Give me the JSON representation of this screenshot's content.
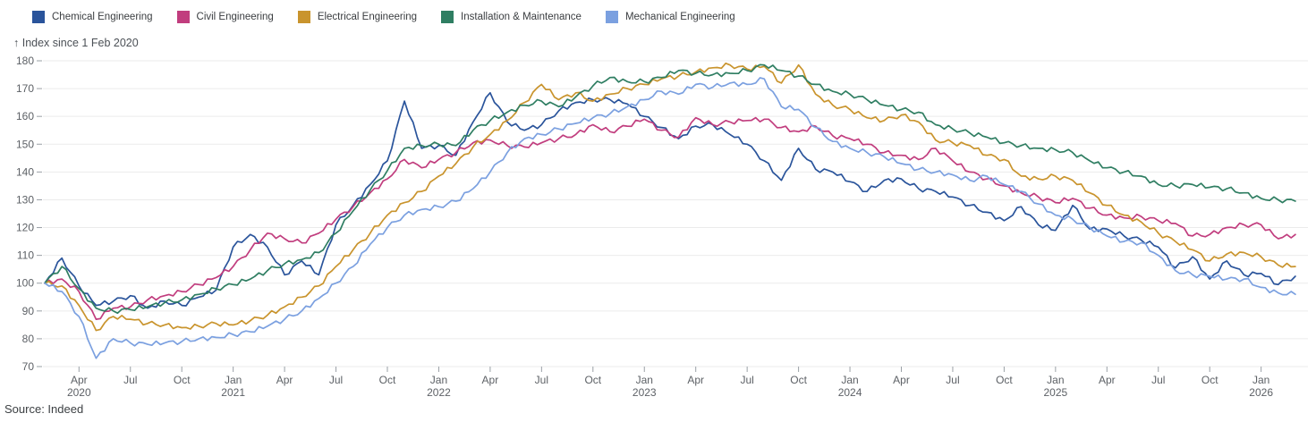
{
  "legend": {
    "items": [
      {
        "label": "Chemical Engineering",
        "color": "#2a549b"
      },
      {
        "label": "Civil Engineering",
        "color": "#c13d7e"
      },
      {
        "label": "Electrical Engineering",
        "color": "#c9942d"
      },
      {
        "label": "Installation & Maintenance",
        "color": "#2f7e62"
      },
      {
        "label": "Mechanical Engineering",
        "color": "#7ba0e0"
      }
    ]
  },
  "axis_title": "↑ Index since 1 Feb 2020",
  "source": "Source: Indeed",
  "chart_data": {
    "type": "line",
    "title": "",
    "ylabel": "Index since 1 Feb 2020",
    "xlabel": "",
    "x_unit": "months since Feb 2020",
    "x_start": "2020-02",
    "x_end": "2026-03",
    "ylim": [
      70,
      180
    ],
    "yticks": [
      70,
      80,
      90,
      100,
      110,
      120,
      130,
      140,
      150,
      160,
      170,
      180
    ],
    "grid": "horizontal",
    "legend_position": "top-left",
    "x_ticks": [
      {
        "m": 2,
        "label": "Apr",
        "year": "2020"
      },
      {
        "m": 5,
        "label": "Jul"
      },
      {
        "m": 8,
        "label": "Oct"
      },
      {
        "m": 11,
        "label": "Jan",
        "year": "2021"
      },
      {
        "m": 14,
        "label": "Apr"
      },
      {
        "m": 17,
        "label": "Jul"
      },
      {
        "m": 20,
        "label": "Oct"
      },
      {
        "m": 23,
        "label": "Jan",
        "year": "2022"
      },
      {
        "m": 26,
        "label": "Apr"
      },
      {
        "m": 29,
        "label": "Jul"
      },
      {
        "m": 32,
        "label": "Oct"
      },
      {
        "m": 35,
        "label": "Jan",
        "year": "2023"
      },
      {
        "m": 38,
        "label": "Apr"
      },
      {
        "m": 41,
        "label": "Jul"
      },
      {
        "m": 44,
        "label": "Oct"
      },
      {
        "m": 47,
        "label": "Jan",
        "year": "2024"
      },
      {
        "m": 50,
        "label": "Apr"
      },
      {
        "m": 53,
        "label": "Jul"
      },
      {
        "m": 56,
        "label": "Oct"
      },
      {
        "m": 59,
        "label": "Jan",
        "year": "2025"
      },
      {
        "m": 62,
        "label": "Apr"
      },
      {
        "m": 65,
        "label": "Jul"
      },
      {
        "m": 68,
        "label": "Oct"
      },
      {
        "m": 71,
        "label": "Jan",
        "year": "2026"
      }
    ],
    "series": [
      {
        "name": "Chemical Engineering",
        "color": "#2a549b",
        "values": [
          100,
          109,
          99,
          92,
          93.5,
          95.5,
          91,
          93.5,
          92,
          95,
          97.5,
          113,
          117.5,
          113,
          103,
          108,
          103,
          121,
          128,
          135.5,
          144,
          165.5,
          148.5,
          149.5,
          146,
          158,
          168.5,
          158,
          155,
          157,
          162,
          165,
          166,
          166,
          164.5,
          160,
          156,
          152,
          156.5,
          157,
          153.5,
          150,
          144,
          137,
          148.5,
          141,
          140,
          136.5,
          133,
          137,
          137.5,
          134,
          133,
          131,
          128,
          125.5,
          122.5,
          127.5,
          121,
          119,
          128,
          119.5,
          119.5,
          117,
          115.5,
          113,
          105.5,
          109.5,
          101.5,
          108,
          103,
          103.5,
          99.5,
          102.5
        ]
      },
      {
        "name": "Civil Engineering",
        "color": "#c13d7e",
        "values": [
          100,
          101.5,
          97,
          87,
          91,
          91.5,
          94,
          95.5,
          97,
          99.5,
          102,
          106,
          112,
          118,
          116,
          114.5,
          118,
          123,
          127.5,
          132.5,
          137.5,
          144.5,
          141.5,
          144.5,
          147,
          150.5,
          151.5,
          149.5,
          149,
          150.5,
          152,
          153.5,
          157,
          154.5,
          156.5,
          159,
          155,
          152.5,
          159.5,
          157,
          158,
          158.5,
          159,
          156,
          154.5,
          156.5,
          153,
          152,
          150,
          147,
          146,
          144.5,
          148.5,
          144,
          140,
          137.5,
          135,
          132.5,
          131,
          129,
          130.5,
          127,
          124.5,
          123.5,
          124,
          122.5,
          121.5,
          117,
          117.5,
          120,
          121,
          121,
          116,
          117.5
        ]
      },
      {
        "name": "Electrical Engineering",
        "color": "#c9942d",
        "values": [
          100,
          99,
          92,
          83,
          88,
          87,
          85.5,
          85,
          84,
          84.5,
          85.5,
          85,
          86.5,
          88.5,
          91.5,
          95,
          99,
          106,
          112,
          118,
          124.5,
          129,
          133,
          138.5,
          143,
          149,
          153.5,
          158.5,
          165,
          171.5,
          166,
          168.5,
          165.5,
          168,
          170,
          171.5,
          173.5,
          174.5,
          176,
          177.5,
          178.5,
          177,
          178,
          172,
          178.5,
          168,
          164,
          162.5,
          159.5,
          158.5,
          160.5,
          158,
          151.5,
          150.5,
          149.5,
          146,
          144.5,
          138.5,
          137.5,
          138.5,
          137,
          132.5,
          128,
          124.5,
          122,
          118,
          115,
          112,
          108,
          110.5,
          111,
          109.5,
          106.5,
          106
        ]
      },
      {
        "name": "Installation & Maintenance",
        "color": "#2f7e62",
        "values": [
          100,
          106,
          98,
          91,
          90,
          90.5,
          91.5,
          93,
          94,
          96,
          98,
          99.5,
          101.5,
          104.5,
          107,
          108.5,
          111,
          118,
          126,
          133.5,
          140.5,
          148.5,
          149.5,
          150,
          149.5,
          155,
          158.5,
          161.5,
          164,
          165.5,
          163.5,
          167,
          171,
          174,
          172.5,
          172.5,
          174,
          176.5,
          175.5,
          175,
          175.5,
          176.5,
          178.5,
          176.5,
          174.5,
          171.5,
          169,
          168,
          166,
          164,
          162.5,
          161.5,
          157,
          155.5,
          154,
          152.5,
          150.5,
          149.5,
          148.5,
          148,
          147,
          144,
          141.5,
          140,
          138.5,
          135.5,
          135,
          135.5,
          134.5,
          134,
          132.5,
          130.5,
          130,
          129.5
        ]
      },
      {
        "name": "Mechanical Engineering",
        "color": "#7ba0e0",
        "values": [
          100,
          97,
          88,
          73,
          80,
          78.5,
          78,
          78.5,
          79,
          80,
          80.5,
          81.5,
          82.5,
          84.5,
          87,
          90,
          94.5,
          100,
          106,
          114,
          120,
          124.5,
          126.5,
          127.5,
          129.5,
          134,
          140,
          147,
          152,
          153.5,
          155.5,
          157.5,
          159.5,
          161,
          163.5,
          166,
          169,
          168,
          171.5,
          170.5,
          172,
          171.5,
          173.5,
          163.5,
          162.5,
          156,
          151,
          148.5,
          147,
          145.5,
          143,
          141,
          140,
          139,
          137,
          138.5,
          135.5,
          133,
          128.5,
          124.5,
          123,
          120,
          117,
          115,
          114.5,
          110,
          104.5,
          103,
          102.5,
          101.5,
          101.5,
          98.5,
          96.5,
          96
        ]
      }
    ]
  }
}
